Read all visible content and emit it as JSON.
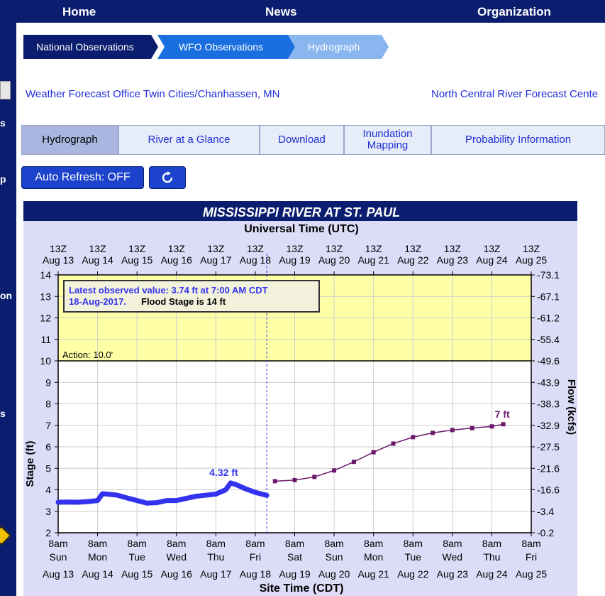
{
  "nav": {
    "home": "Home",
    "news": "News",
    "organization": "Organization"
  },
  "sidebar": {
    "fragments": [
      "s",
      "p",
      "on",
      "s"
    ]
  },
  "breadcrumb": [
    "National Observations",
    "WFO Observations",
    "Hydrograph"
  ],
  "links": {
    "wfo": "Weather Forecast Office Twin Cities/Chanhassen, MN",
    "rfc": "North Central River Forecast Cente"
  },
  "tabs": [
    {
      "label": "Hydrograph"
    },
    {
      "label": "River at a Glance"
    },
    {
      "label": "Download"
    },
    {
      "label": "Inundation\nMapping"
    },
    {
      "label": "Probability Information"
    }
  ],
  "controls": {
    "auto_refresh": "Auto Refresh: OFF",
    "refresh_icon": "refresh-icon"
  },
  "colors": {
    "nav_bg": "#0a1d6e",
    "chart_bg": "#dcdcf8",
    "flood_zone": "#ffff99",
    "observed": "#3333ee",
    "forecast": "#6b1a6b",
    "title_bar": "#0a1d6e"
  },
  "chart_data": {
    "type": "line",
    "title": "MISSISSIPPI RIVER AT ST. PAUL",
    "top_axis_title": "Universal Time (UTC)",
    "bottom_axis_title": "Site Time (CDT)",
    "ylabel_left": "Stage (ft)",
    "ylabel_right": "Flow (kcfs)",
    "ylim": [
      2,
      14
    ],
    "y_ticks": [
      2,
      3,
      4,
      5,
      6,
      7,
      8,
      9,
      10,
      11,
      12,
      13,
      14
    ],
    "right_ticks": [
      "0.2",
      "3.4",
      "16.6",
      "21.6",
      "27.5",
      "32.9",
      "38.3",
      "43.9",
      "49.6",
      "55.4",
      "61.2",
      "67.1",
      "73.1"
    ],
    "x_days": [
      "Aug 13",
      "Aug 14",
      "Aug 15",
      "Aug 16",
      "Aug 17",
      "Aug 18",
      "Aug 19",
      "Aug 20",
      "Aug 21",
      "Aug 22",
      "Aug 23",
      "Aug 24",
      "Aug 25"
    ],
    "x_weekdays": [
      "Sun",
      "Mon",
      "Tue",
      "Wed",
      "Thu",
      "Fri",
      "Sat",
      "Sun",
      "Mon",
      "Tue",
      "Wed",
      "Thu",
      "Fri"
    ],
    "top_tick_label": "13Z",
    "bottom_tick_label": "8am",
    "grid": true,
    "legend": "none",
    "annotations": {
      "observed_line1": "Latest observed value: 3.74 ft at 7:00 AM CDT",
      "observed_line2": "18-Aug-2017.",
      "flood_stage": "Flood Stage is 14 ft",
      "action_label": "Action: 10.0'",
      "peak_label": "4.32 ft",
      "forecast_end_label": "7 ft"
    },
    "action_stage": 10,
    "flood_stage": 14,
    "current_time": "Aug 18 7:00",
    "series": [
      {
        "name": "Observed",
        "x": [
          "Aug 13 0:00",
          "Aug 13 6:00",
          "Aug 13 12:00",
          "Aug 13 18:00",
          "Aug 14 0:00",
          "Aug 14 3:00",
          "Aug 14 6:00",
          "Aug 14 12:00",
          "Aug 14 18:00",
          "Aug 15 0:00",
          "Aug 15 6:00",
          "Aug 15 12:00",
          "Aug 15 18:00",
          "Aug 16 0:00",
          "Aug 16 6:00",
          "Aug 16 12:00",
          "Aug 16 18:00",
          "Aug 17 0:00",
          "Aug 17 6:00",
          "Aug 17 9:00",
          "Aug 17 12:00",
          "Aug 17 18:00",
          "Aug 18 0:00",
          "Aug 18 7:00"
        ],
        "y": [
          3.42,
          3.43,
          3.42,
          3.45,
          3.5,
          3.82,
          3.8,
          3.75,
          3.62,
          3.5,
          3.38,
          3.4,
          3.5,
          3.5,
          3.6,
          3.7,
          3.75,
          3.8,
          4.0,
          4.32,
          4.25,
          4.05,
          3.88,
          3.74
        ]
      },
      {
        "name": "Forecast",
        "x": [
          "Aug 18 12:00",
          "Aug 19 0:00",
          "Aug 19 12:00",
          "Aug 20 0:00",
          "Aug 20 12:00",
          "Aug 21 0:00",
          "Aug 21 12:00",
          "Aug 22 0:00",
          "Aug 22 12:00",
          "Aug 23 0:00",
          "Aug 23 12:00",
          "Aug 24 0:00",
          "Aug 24 7:00"
        ],
        "y": [
          4.4,
          4.45,
          4.6,
          4.9,
          5.3,
          5.75,
          6.15,
          6.45,
          6.65,
          6.78,
          6.87,
          6.95,
          7.05
        ]
      }
    ]
  }
}
